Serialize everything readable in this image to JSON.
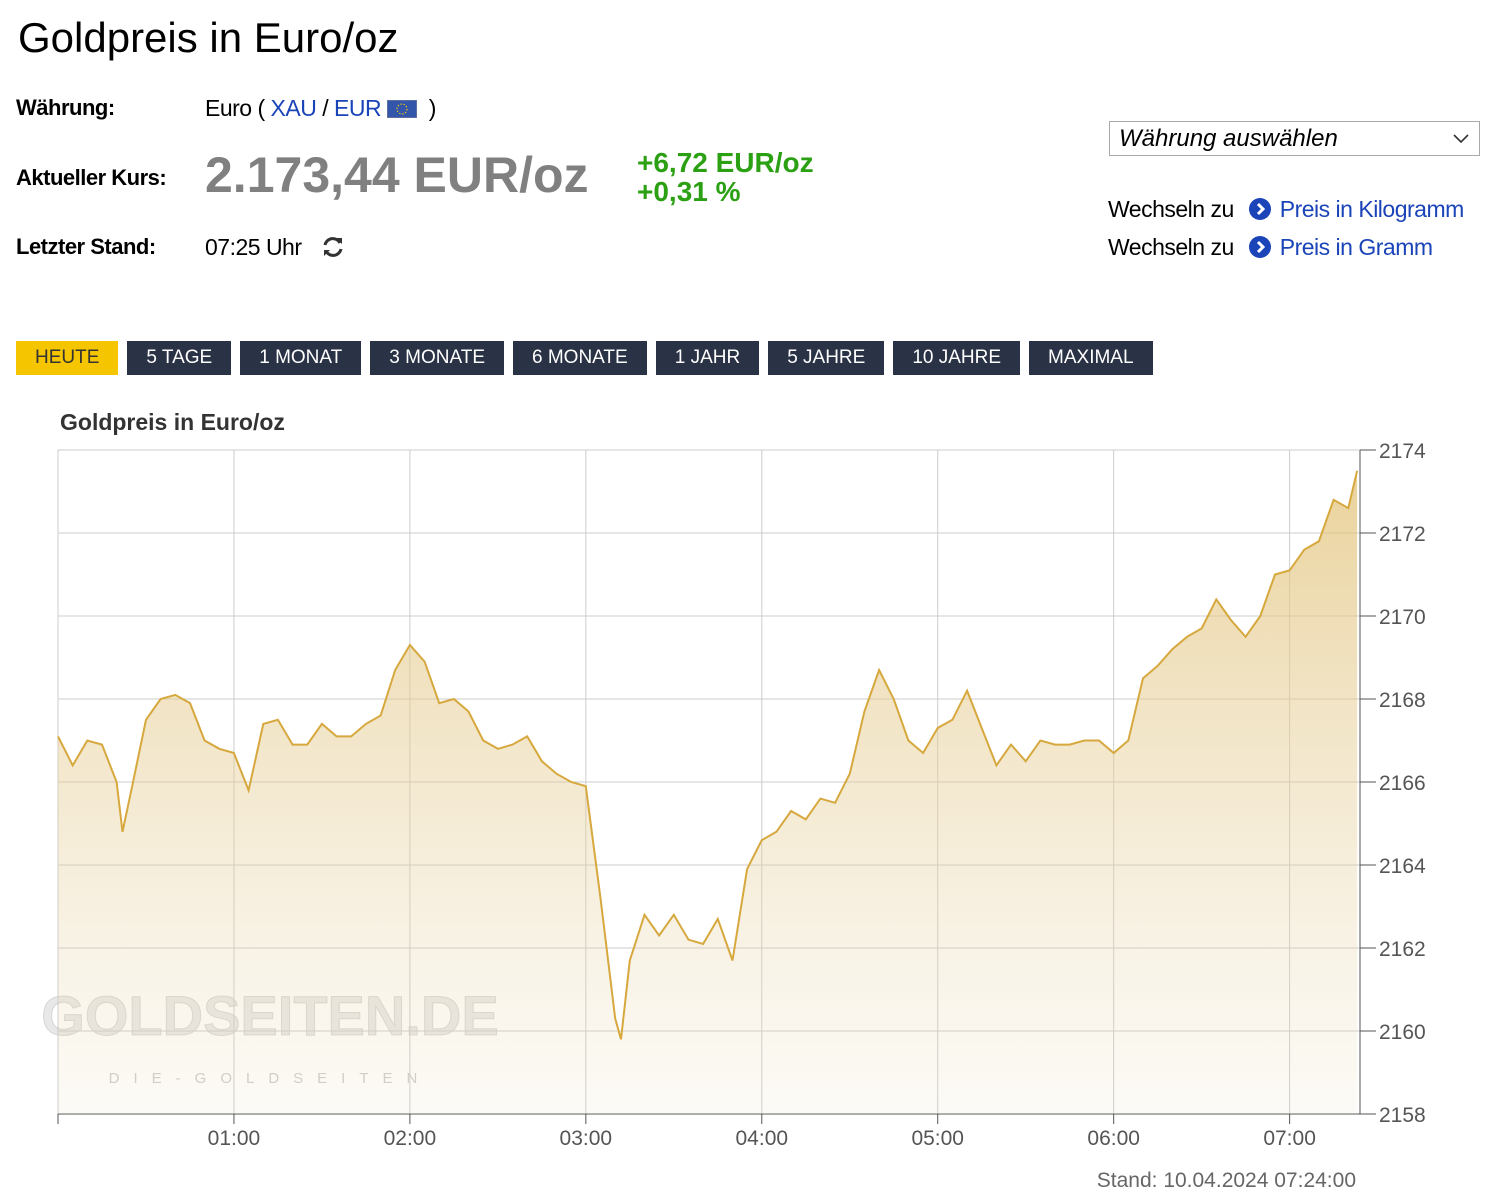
{
  "header": {
    "title": "Goldpreis in Euro/oz"
  },
  "info": {
    "currency_label": "Währung:",
    "currency_parts": [
      "Euro (",
      "XAU",
      "/",
      "EUR",
      ")"
    ],
    "price_label": "Aktueller Kurs:",
    "price": "2.173,44 EUR/oz",
    "change_abs": "+6,72 EUR/oz",
    "change_pct": "+0,31 %",
    "time_label": "Letzter Stand:",
    "time": "07:25 Uhr"
  },
  "currency_select": "Währung auswählen",
  "switch_links": [
    {
      "prefix": "Wechseln zu",
      "link": "Preis in Kilogramm"
    },
    {
      "prefix": "Wechseln zu",
      "link": "Preis in Gramm"
    }
  ],
  "tabs": [
    "HEUTE",
    "5 TAGE",
    "1 MONAT",
    "3 MONATE",
    "6 MONATE",
    "1 JAHR",
    "5 JAHRE",
    "10 JAHRE",
    "MAXIMAL"
  ],
  "active_tab": 0,
  "chart_data": {
    "type": "area",
    "title": "Goldpreis in Euro/oz",
    "watermark": "GOLDSEITEN.DE",
    "watermark_sub": "DIE-GOLDSEITEN",
    "footer": "Stand: 10.04.2024 07:24:00",
    "color": "#d6a83e",
    "grid": true,
    "x": [
      0,
      5,
      10,
      15,
      20,
      22,
      25,
      30,
      35,
      40,
      45,
      50,
      55,
      60,
      65,
      70,
      75,
      80,
      85,
      90,
      95,
      100,
      105,
      110,
      115,
      120,
      125,
      130,
      135,
      140,
      145,
      150,
      155,
      160,
      165,
      170,
      175,
      180,
      185,
      190,
      192,
      195,
      200,
      205,
      210,
      215,
      220,
      225,
      230,
      235,
      240,
      245,
      250,
      255,
      260,
      265,
      270,
      275,
      280,
      285,
      290,
      295,
      300,
      305,
      310,
      315,
      320,
      325,
      330,
      335,
      340,
      345,
      350,
      355,
      360,
      365,
      370,
      375,
      380,
      385,
      390,
      395,
      400,
      405,
      410,
      415,
      420,
      425,
      430,
      435,
      440,
      443
    ],
    "values": [
      2167.1,
      2166.4,
      2167.0,
      2166.9,
      2166.0,
      2164.8,
      2165.8,
      2167.5,
      2168.0,
      2168.1,
      2167.9,
      2167.0,
      2166.8,
      2166.7,
      2165.8,
      2167.4,
      2167.5,
      2166.9,
      2166.9,
      2167.4,
      2167.1,
      2167.1,
      2167.4,
      2167.6,
      2168.7,
      2169.3,
      2168.9,
      2167.9,
      2168.0,
      2167.7,
      2167.0,
      2166.8,
      2166.9,
      2167.1,
      2166.5,
      2166.2,
      2166.0,
      2165.9,
      2163.2,
      2160.3,
      2159.8,
      2161.7,
      2162.8,
      2162.3,
      2162.8,
      2162.2,
      2162.1,
      2162.7,
      2161.7,
      2163.9,
      2164.6,
      2164.8,
      2165.3,
      2165.1,
      2165.6,
      2165.5,
      2166.2,
      2167.7,
      2168.7,
      2168.0,
      2167.0,
      2166.7,
      2167.3,
      2167.5,
      2168.2,
      2167.3,
      2166.4,
      2166.9,
      2166.5,
      2167.0,
      2166.9,
      2166.9,
      2167.0,
      2167.0,
      2166.7,
      2167.0,
      2168.5,
      2168.8,
      2169.2,
      2169.5,
      2169.7,
      2170.4,
      2169.9,
      2169.5,
      2170.0,
      2171.0,
      2171.1,
      2171.6,
      2171.8,
      2172.8,
      2172.6,
      2173.5
    ],
    "xlim": [
      0,
      444
    ],
    "xticks": [
      {
        "value": 60,
        "label": "01:00"
      },
      {
        "value": 120,
        "label": "02:00"
      },
      {
        "value": 180,
        "label": "03:00"
      },
      {
        "value": 240,
        "label": "04:00"
      },
      {
        "value": 300,
        "label": "05:00"
      },
      {
        "value": 360,
        "label": "06:00"
      },
      {
        "value": 420,
        "label": "07:00"
      }
    ],
    "ylim": [
      2158,
      2174
    ],
    "yticks": [
      2158,
      2160,
      2162,
      2164,
      2166,
      2168,
      2170,
      2172,
      2174
    ]
  }
}
